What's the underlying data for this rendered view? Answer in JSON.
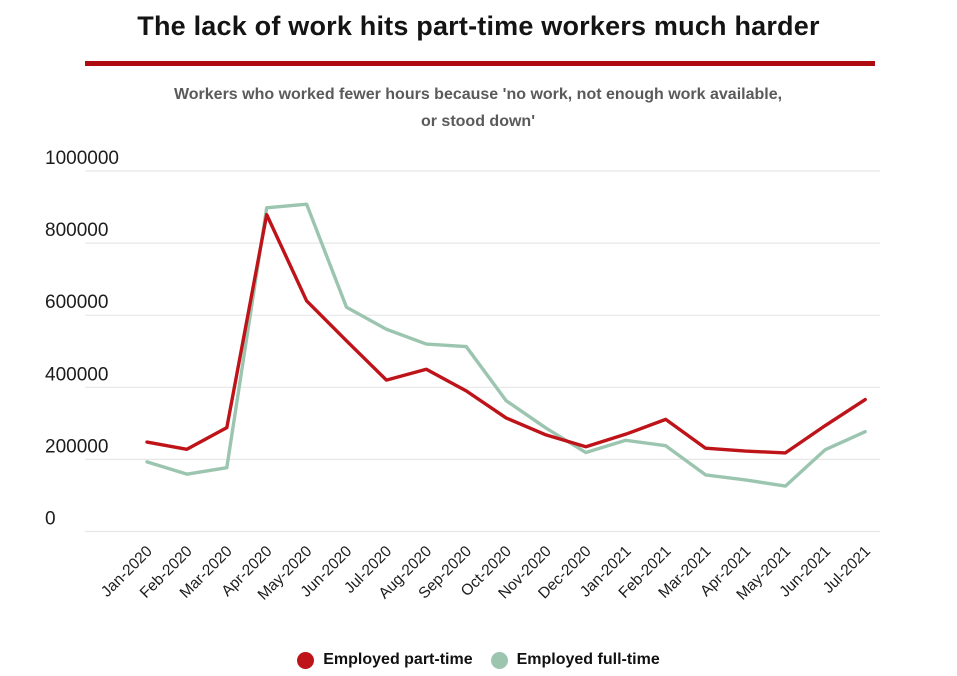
{
  "chart_data": {
    "type": "line",
    "title": "The lack of work hits part-time workers much harder",
    "subtitle": "Workers who worked fewer hours because 'no work, not enough work available, or stood down'",
    "categories": [
      "Jan-2020",
      "Feb-2020",
      "Mar-2020",
      "Apr-2020",
      "May-2020",
      "Jun-2020",
      "Jul-2020",
      "Aug-2020",
      "Sep-2020",
      "Oct-2020",
      "Nov-2020",
      "Dec-2020",
      "Jan-2021",
      "Feb-2021",
      "Mar-2021",
      "Apr-2021",
      "May-2021",
      "Jun-2021",
      "Jul-2021"
    ],
    "series": [
      {
        "name": "Employed part-time",
        "color": "#be1419",
        "values": [
          248000,
          228000,
          288000,
          879000,
          640000,
          529000,
          420000,
          450000,
          390000,
          315000,
          268000,
          235000,
          270000,
          311000,
          231000,
          223000,
          218000,
          294000,
          366000
        ]
      },
      {
        "name": "Employed full-time",
        "color": "#9cc5b0",
        "values": [
          193000,
          159000,
          177000,
          898000,
          908000,
          622000,
          561000,
          520000,
          513000,
          363000,
          287000,
          219000,
          253000,
          238000,
          157000,
          143000,
          126000,
          227000,
          277000
        ]
      }
    ],
    "ylim": [
      0,
      1000000
    ],
    "yticks": [
      0,
      200000,
      400000,
      600000,
      800000,
      1000000
    ],
    "ytick_labels": [
      "0",
      "200000",
      "400000",
      "600000",
      "800000",
      "1000000"
    ],
    "grid": "horizontal",
    "legend_position": "bottom",
    "x_label_rotation": -45
  },
  "styles": {
    "background": "#ffffff",
    "accent_rule": "#ae0c10",
    "grid": "#e7e7e7",
    "axis_text": "#1c1c1c",
    "title_text": "#141414",
    "subtitle_text": "#5a5a5a",
    "legend_text": "#111111"
  }
}
